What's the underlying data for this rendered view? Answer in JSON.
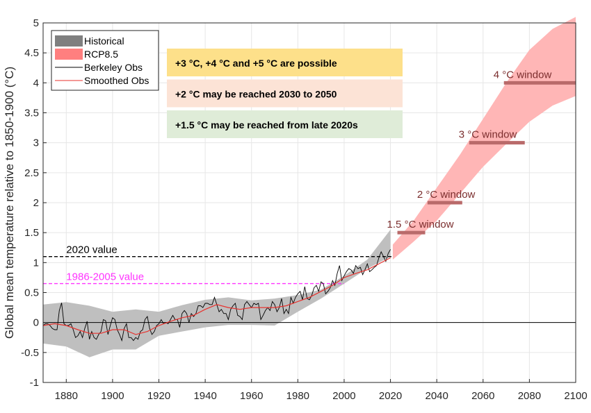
{
  "chart_data": {
    "type": "line",
    "xlim": [
      1870,
      2100
    ],
    "ylim": [
      -1,
      5
    ],
    "grid": true,
    "xticks": [
      "1880",
      "1900",
      "1920",
      "1940",
      "1960",
      "1980",
      "2000",
      "2020",
      "2040",
      "2060",
      "2080",
      "2100"
    ],
    "yticks": [
      "-1",
      "-0.5",
      "0",
      "0.5",
      "1",
      "1.5",
      "2",
      "2.5",
      "3",
      "3.5",
      "4",
      "4.5",
      "5"
    ],
    "ylabel": "Global mean temperature relative to 1850-1900 (°C)",
    "legend": {
      "position": "top-left",
      "items": [
        "Historical",
        "RCP8.5",
        "Berkeley Obs",
        "Smoothed Obs"
      ]
    },
    "series": [
      {
        "name": "Historical",
        "kind": "band",
        "color": "#bfbfbf",
        "x": [
          1870,
          1880,
          1890,
          1900,
          1910,
          1920,
          1930,
          1940,
          1950,
          1960,
          1970,
          1980,
          1990,
          2000,
          2010,
          2020
        ],
        "upper": [
          0.3,
          0.34,
          0.28,
          0.18,
          0.22,
          0.18,
          0.29,
          0.38,
          0.42,
          0.37,
          0.4,
          0.46,
          0.55,
          0.78,
          1.05,
          1.55
        ],
        "lower": [
          -0.35,
          -0.4,
          -0.58,
          -0.45,
          -0.45,
          -0.22,
          -0.15,
          -0.08,
          -0.04,
          -0.04,
          -0.05,
          0.18,
          0.4,
          0.65,
          0.9,
          1.1
        ]
      },
      {
        "name": "RCP8.5",
        "kind": "band",
        "color": "#ffb6b6",
        "x": [
          2021,
          2030,
          2040,
          2050,
          2060,
          2070,
          2080,
          2090,
          2100
        ],
        "upper": [
          1.3,
          1.7,
          2.25,
          2.8,
          3.4,
          4.0,
          4.55,
          4.9,
          5.1
        ],
        "lower": [
          1.05,
          1.35,
          1.7,
          2.15,
          2.6,
          2.98,
          3.35,
          3.62,
          3.78
        ]
      },
      {
        "name": "Berkeley Obs",
        "kind": "line",
        "color": "#000000",
        "x": [
          1870,
          1871,
          1872,
          1873,
          1874,
          1875,
          1876,
          1877,
          1878,
          1879,
          1880,
          1881,
          1882,
          1883,
          1884,
          1885,
          1886,
          1887,
          1888,
          1889,
          1890,
          1891,
          1892,
          1893,
          1894,
          1895,
          1896,
          1897,
          1898,
          1899,
          1900,
          1901,
          1902,
          1903,
          1904,
          1905,
          1906,
          1907,
          1908,
          1909,
          1910,
          1911,
          1912,
          1913,
          1914,
          1915,
          1916,
          1917,
          1918,
          1919,
          1920,
          1921,
          1922,
          1923,
          1924,
          1925,
          1926,
          1927,
          1928,
          1929,
          1930,
          1931,
          1932,
          1933,
          1934,
          1935,
          1936,
          1937,
          1938,
          1939,
          1940,
          1941,
          1942,
          1943,
          1944,
          1945,
          1946,
          1947,
          1948,
          1949,
          1950,
          1951,
          1952,
          1953,
          1954,
          1955,
          1956,
          1957,
          1958,
          1959,
          1960,
          1961,
          1962,
          1963,
          1964,
          1965,
          1966,
          1967,
          1968,
          1969,
          1970,
          1971,
          1972,
          1973,
          1974,
          1975,
          1976,
          1977,
          1978,
          1979,
          1980,
          1981,
          1982,
          1983,
          1984,
          1985,
          1986,
          1987,
          1988,
          1989,
          1990,
          1991,
          1992,
          1993,
          1994,
          1995,
          1996,
          1997,
          1998,
          1999,
          2000,
          2001,
          2002,
          2003,
          2004,
          2005,
          2006,
          2007,
          2008,
          2009,
          2010,
          2011,
          2012,
          2013,
          2014,
          2015,
          2016,
          2017,
          2018,
          2019,
          2020
        ],
        "y": [
          -0.05,
          -0.02,
          -0.02,
          -0.05,
          -0.1,
          -0.12,
          -0.12,
          0.2,
          0.33,
          -0.02,
          -0.05,
          -0.05,
          -0.02,
          -0.12,
          -0.25,
          -0.22,
          -0.15,
          -0.25,
          -0.1,
          0.02,
          -0.28,
          -0.15,
          -0.25,
          -0.28,
          -0.2,
          -0.15,
          0.05,
          0.03,
          -0.2,
          -0.05,
          0.08,
          0.05,
          -0.12,
          -0.2,
          -0.3,
          -0.1,
          -0.02,
          -0.25,
          -0.25,
          -0.3,
          -0.25,
          -0.28,
          -0.15,
          -0.12,
          0.05,
          0.1,
          -0.1,
          -0.2,
          -0.15,
          -0.05,
          -0.02,
          0.05,
          -0.02,
          0.0,
          -0.02,
          0.05,
          0.12,
          0.05,
          0.05,
          -0.08,
          0.15,
          0.2,
          0.15,
          0.0,
          0.15,
          0.1,
          0.15,
          0.28,
          0.28,
          0.25,
          0.32,
          0.32,
          0.3,
          0.3,
          0.42,
          0.3,
          0.18,
          0.22,
          0.15,
          0.15,
          0.05,
          0.22,
          0.28,
          0.32,
          0.12,
          0.1,
          0.05,
          0.3,
          0.35,
          0.3,
          0.25,
          0.32,
          0.3,
          0.32,
          0.05,
          0.12,
          0.2,
          0.25,
          0.2,
          0.35,
          0.3,
          0.18,
          0.25,
          0.4,
          0.15,
          0.22,
          0.15,
          0.42,
          0.32,
          0.42,
          0.48,
          0.52,
          0.38,
          0.6,
          0.4,
          0.38,
          0.45,
          0.58,
          0.62,
          0.52,
          0.68,
          0.65,
          0.48,
          0.52,
          0.58,
          0.7,
          0.62,
          0.82,
          0.95,
          0.7,
          0.78,
          0.85,
          0.9,
          0.88,
          0.82,
          0.95,
          0.9,
          0.92,
          0.8,
          0.88,
          0.98,
          0.85,
          0.88,
          0.92,
          0.95,
          1.08,
          1.18,
          1.1,
          1.02,
          1.15,
          1.22
        ]
      },
      {
        "name": "Smoothed Obs",
        "kind": "line",
        "color": "#e8322e",
        "x": [
          1870,
          1875,
          1880,
          1885,
          1890,
          1895,
          1900,
          1905,
          1910,
          1915,
          1920,
          1925,
          1930,
          1935,
          1940,
          1945,
          1950,
          1955,
          1960,
          1965,
          1970,
          1975,
          1980,
          1985,
          1990,
          1995,
          2000,
          2005,
          2010,
          2015,
          2020
        ],
        "y": [
          -0.05,
          -0.02,
          -0.05,
          -0.12,
          -0.18,
          -0.18,
          -0.12,
          -0.12,
          -0.2,
          -0.15,
          -0.05,
          0.02,
          0.08,
          0.12,
          0.22,
          0.3,
          0.25,
          0.22,
          0.25,
          0.25,
          0.25,
          0.28,
          0.35,
          0.42,
          0.52,
          0.62,
          0.75,
          0.82,
          0.88,
          0.98,
          1.08
        ]
      }
    ],
    "reference_lines": [
      {
        "label": "2020 value",
        "y": 1.1,
        "x_range": [
          1870,
          2021
        ],
        "color": "#000000",
        "style": "dashed"
      },
      {
        "label": "1986-2005 value",
        "y": 0.65,
        "x_range": [
          1870,
          2000
        ],
        "color": "#ff33ff",
        "style": "dashed"
      }
    ],
    "zero_line": 0,
    "windows": [
      {
        "label": "1.5 °C window",
        "y": 1.5,
        "x_range": [
          2023,
          2035
        ],
        "color": "#b96a6a"
      },
      {
        "label": "2 °C window",
        "y": 2.0,
        "x_range": [
          2036,
          2051
        ],
        "color": "#b96a6a"
      },
      {
        "label": "3 °C window",
        "y": 3.0,
        "x_range": [
          2054,
          2078
        ],
        "color": "#b96a6a"
      },
      {
        "label": "4 °C window",
        "y": 4.0,
        "x_range": [
          2069,
          2100
        ],
        "color": "#b96a6a"
      }
    ],
    "annotation_boxes": [
      {
        "text": "+3 °C, +4 °C and +5 °C are possible",
        "color": "#fde08a"
      },
      {
        "text": "+2 °C may be reached 2030 to 2050",
        "color": "#fce3d6"
      },
      {
        "text": "+1.5 °C may be reached from late 2020s",
        "color": "#dfecd8"
      }
    ]
  }
}
